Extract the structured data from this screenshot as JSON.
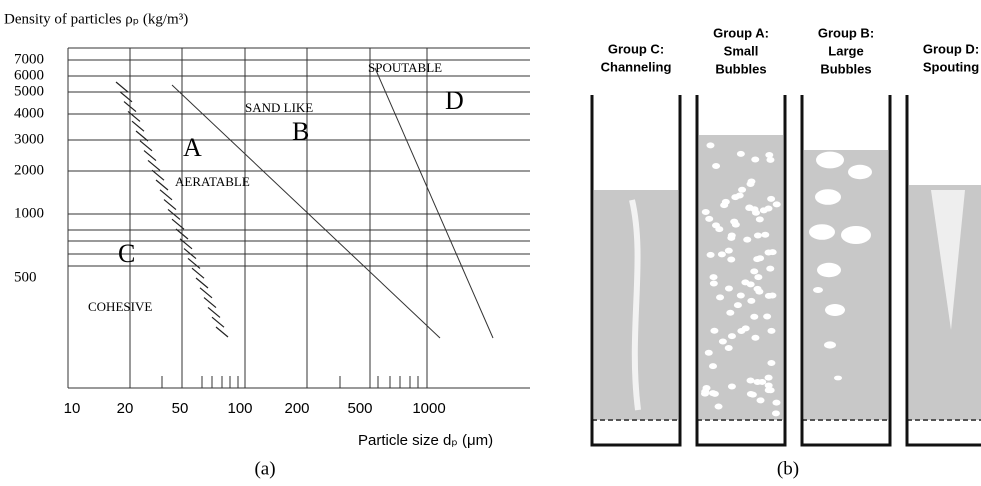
{
  "panel_a": {
    "y_axis_title": "Density of particles ρₚ (kg/m³)",
    "y_tick_labels": [
      "7000",
      "6000",
      "5000",
      "4000",
      "3000",
      "2000",
      "1000",
      "500"
    ],
    "x_tick_labels": [
      "10",
      "20",
      "50",
      "100",
      "200",
      "500",
      "1000"
    ],
    "x_axis_title": "Particle size dₚ (μm)",
    "region_labels": [
      "SPOUTABLE",
      "D",
      "SAND LIKE",
      "B",
      "A",
      "AERATABLE",
      "C",
      "COHESIVE"
    ],
    "caption": "(a)"
  },
  "panel_b": {
    "groups": [
      {
        "lines": [
          "Group C:",
          "Channeling"
        ]
      },
      {
        "lines": [
          "Group A:",
          "Small",
          "Bubbles"
        ]
      },
      {
        "lines": [
          "Group B:",
          "Large",
          "Bubbles"
        ]
      },
      {
        "lines": [
          "Group D:",
          "Spouting"
        ]
      }
    ],
    "caption": "(b)"
  }
}
